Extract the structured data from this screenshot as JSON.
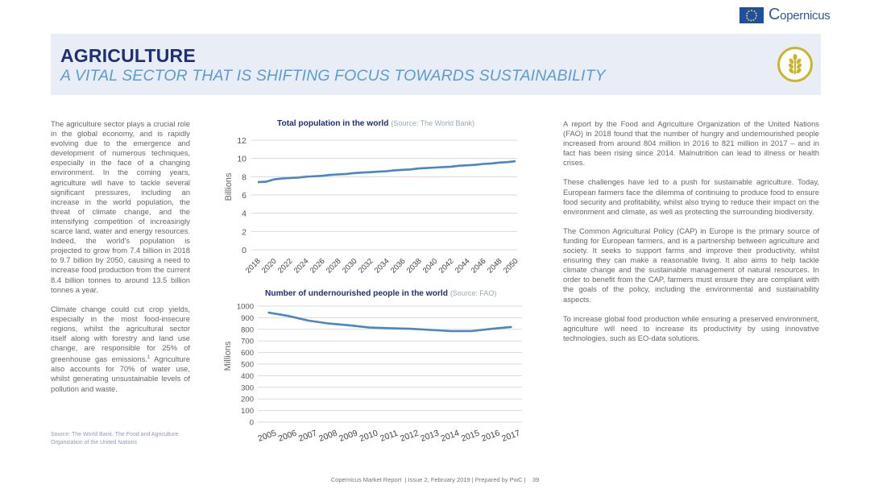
{
  "header": {
    "title": "AGRICULTURE",
    "subtitle": "A VITAL SECTOR THAT IS SHIFTING FOCUS TOWARDS SUSTAINABILITY",
    "brand": "opernicus",
    "brand_initial": "C"
  },
  "left_column": {
    "p1": "The agriculture sector plays a crucial role in the global economy, and is rapidly evolving due to the emergence and development of numerous techniques, especially in the face of a changing environment. In the coming years, agriculture will have to tackle several significant pressures, including an increase in the world population, the threat of climate change, and the intensifying competition of increasingly scarce land, water and energy resources. Indeed, the world's population is projected to grow from 7.4 billion in 2018 to 9.7 billion by 2050, causing a need to increase food production from the current 8.4 billion tonnes to around 13.5 billion tonnes a year.",
    "p2": "Climate change could cut crop yields, especially in the most food-insecure regions, whilst the agricultural sector itself along with forestry and land use change, are responsible for 25% of greenhouse gas emissions.",
    "p2_sup": "1",
    "p2_rest": " Agriculture also accounts for 70% of water use, whilst generating unsustainable levels of pollution and waste.",
    "source": "Source: The World Bank, The Food and Agriculture Organization of the United Nations"
  },
  "right_column": {
    "p1": "A report by the Food and Agriculture Organization of the United Nations (FAO) in 2018 found that the number of hungry and undernourished people increased from around 804 million in 2016 to 821 million in 2017 – and in fact has been rising since 2014. Malnutrition can lead to illness or health crises.",
    "p2": "These challenges have led to a push for sustainable agriculture. Today, European farmers face the dilemma of continuing to produce food to ensure food security and profitability, whilst also trying to reduce their impact on the environment and climate, as well as protecting the surrounding biodiversity.",
    "p3": "The Common Agricultural Policy (CAP) in Europe is the primary source of funding for European farmers, and is a partnership between agriculture and society. It seeks to support farms and improve their productivity, whilst ensuring they can make a reasonable living. It also aims to help tackle climate change and the sustainable management of natural resources. In order to benefit from the CAP, farmers must ensure they are compliant with the goals of the policy, including the environmental and sustainability aspects.",
    "p4": "To increase global food production while ensuring a preserved environment, agriculture will need to increase its productivity by using innovative technologies, such as EO-data solutions."
  },
  "footer": {
    "text": "Copernicus Market Report  | Issue 2, February 2019 | Prepared by PwC |    39"
  },
  "colors": {
    "navy": "#1e2e7a",
    "accent": "#5b9bd5",
    "line": "#4a86c5",
    "banner": "#e9eef6"
  },
  "icons": [
    "eu-flag-icon",
    "wheat-icon"
  ],
  "chart_data": [
    {
      "type": "line",
      "title": "Total population in the world",
      "source_note": "(Source: The World Bank)",
      "ylabel": "Billions",
      "xlabel": "",
      "ylim": [
        0,
        12
      ],
      "yticks": [
        "0",
        "2",
        "4",
        "6",
        "8",
        "10",
        "12"
      ],
      "grid": true,
      "x_tick_labels": [
        "2018",
        "2020",
        "2022",
        "2024",
        "2026",
        "2028",
        "2030",
        "2032",
        "2034",
        "2036",
        "2038",
        "2040",
        "2042",
        "2044",
        "2046",
        "2048",
        "2050"
      ],
      "x": [
        2018,
        2019,
        2020,
        2021,
        2022,
        2023,
        2024,
        2025,
        2026,
        2027,
        2028,
        2029,
        2030,
        2031,
        2032,
        2033,
        2034,
        2035,
        2036,
        2037,
        2038,
        2039,
        2040,
        2041,
        2042,
        2043,
        2044,
        2045,
        2046,
        2047,
        2048,
        2049,
        2050
      ],
      "values": [
        7.4,
        7.45,
        7.7,
        7.8,
        7.85,
        7.9,
        8.0,
        8.05,
        8.1,
        8.2,
        8.25,
        8.3,
        8.4,
        8.45,
        8.5,
        8.55,
        8.6,
        8.7,
        8.75,
        8.8,
        8.9,
        8.95,
        9.0,
        9.05,
        9.1,
        9.2,
        9.25,
        9.3,
        9.4,
        9.45,
        9.55,
        9.6,
        9.7
      ]
    },
    {
      "type": "line",
      "title": "Number of undernourished people in the world",
      "source_note": "(Source: FAO)",
      "ylabel": "Millions",
      "xlabel": "",
      "ylim": [
        0,
        1000
      ],
      "yticks": [
        "0",
        "100",
        "200",
        "300",
        "400",
        "500",
        "600",
        "700",
        "800",
        "900",
        "1000"
      ],
      "grid": true,
      "categories": [
        "2005",
        "2006",
        "2007",
        "2008",
        "2009",
        "2010",
        "2011",
        "2012",
        "2013",
        "2014",
        "2015",
        "2016",
        "2017"
      ],
      "values": [
        945,
        915,
        875,
        850,
        835,
        815,
        810,
        805,
        795,
        785,
        785,
        804,
        821
      ]
    }
  ]
}
